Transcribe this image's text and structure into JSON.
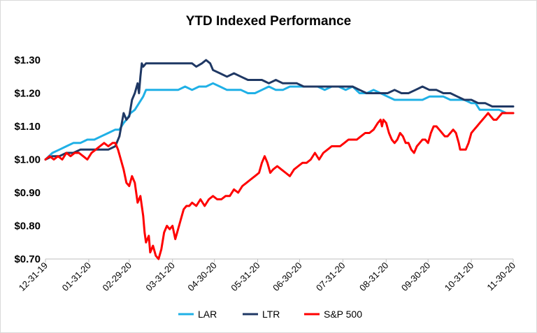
{
  "chart_data": {
    "type": "line",
    "title": "YTD Indexed Performance",
    "xlabel": "",
    "ylabel": "",
    "ylim": [
      0.7,
      1.3
    ],
    "y_ticks": [
      {
        "value": 0.7,
        "label": "$0.70"
      },
      {
        "value": 0.8,
        "label": "$0.80"
      },
      {
        "value": 0.9,
        "label": "$0.90"
      },
      {
        "value": 1.0,
        "label": "$1.00"
      },
      {
        "value": 1.1,
        "label": "$1.10"
      },
      {
        "value": 1.2,
        "label": "$1.20"
      },
      {
        "value": 1.3,
        "label": "$1.30"
      }
    ],
    "x_ticks": [
      {
        "day": 0,
        "label": "12-31-19"
      },
      {
        "day": 31,
        "label": "01-31-20"
      },
      {
        "day": 60,
        "label": "02-29-20"
      },
      {
        "day": 91,
        "label": "03-31-20"
      },
      {
        "day": 121,
        "label": "04-30-20"
      },
      {
        "day": 152,
        "label": "05-31-20"
      },
      {
        "day": 182,
        "label": "06-30-20"
      },
      {
        "day": 213,
        "label": "07-31-20"
      },
      {
        "day": 244,
        "label": "08-31-20"
      },
      {
        "day": 274,
        "label": "09-30-20"
      },
      {
        "day": 305,
        "label": "10-31-20"
      },
      {
        "day": 335,
        "label": "11-30-20"
      }
    ],
    "xlim": [
      0,
      335
    ],
    "grid": false,
    "legend_position": "bottom",
    "series": [
      {
        "name": "LAR",
        "color": "#1fb0e6",
        "points": [
          [
            0,
            1.0
          ],
          [
            5,
            1.02
          ],
          [
            10,
            1.03
          ],
          [
            15,
            1.04
          ],
          [
            20,
            1.05
          ],
          [
            25,
            1.05
          ],
          [
            30,
            1.06
          ],
          [
            35,
            1.06
          ],
          [
            40,
            1.07
          ],
          [
            45,
            1.08
          ],
          [
            50,
            1.09
          ],
          [
            53,
            1.09
          ],
          [
            56,
            1.11
          ],
          [
            58,
            1.12
          ],
          [
            61,
            1.14
          ],
          [
            64,
            1.15
          ],
          [
            67,
            1.17
          ],
          [
            70,
            1.19
          ],
          [
            72,
            1.21
          ],
          [
            75,
            1.21
          ],
          [
            80,
            1.21
          ],
          [
            88,
            1.21
          ],
          [
            95,
            1.21
          ],
          [
            100,
            1.22
          ],
          [
            105,
            1.21
          ],
          [
            110,
            1.22
          ],
          [
            115,
            1.22
          ],
          [
            120,
            1.23
          ],
          [
            125,
            1.22
          ],
          [
            130,
            1.21
          ],
          [
            135,
            1.21
          ],
          [
            140,
            1.21
          ],
          [
            145,
            1.2
          ],
          [
            150,
            1.2
          ],
          [
            155,
            1.21
          ],
          [
            160,
            1.22
          ],
          [
            165,
            1.21
          ],
          [
            170,
            1.21
          ],
          [
            175,
            1.22
          ],
          [
            180,
            1.22
          ],
          [
            185,
            1.22
          ],
          [
            190,
            1.22
          ],
          [
            195,
            1.22
          ],
          [
            200,
            1.21
          ],
          [
            205,
            1.22
          ],
          [
            210,
            1.22
          ],
          [
            215,
            1.21
          ],
          [
            220,
            1.22
          ],
          [
            225,
            1.2
          ],
          [
            230,
            1.2
          ],
          [
            235,
            1.21
          ],
          [
            240,
            1.2
          ],
          [
            245,
            1.19
          ],
          [
            250,
            1.18
          ],
          [
            255,
            1.18
          ],
          [
            260,
            1.18
          ],
          [
            265,
            1.18
          ],
          [
            270,
            1.18
          ],
          [
            275,
            1.19
          ],
          [
            280,
            1.19
          ],
          [
            285,
            1.19
          ],
          [
            290,
            1.18
          ],
          [
            295,
            1.18
          ],
          [
            300,
            1.18
          ],
          [
            305,
            1.17
          ],
          [
            308,
            1.17
          ],
          [
            311,
            1.15
          ],
          [
            315,
            1.15
          ],
          [
            320,
            1.15
          ],
          [
            325,
            1.15
          ],
          [
            330,
            1.14
          ],
          [
            335,
            1.14
          ]
        ]
      },
      {
        "name": "LTR",
        "color": "#1f3864",
        "points": [
          [
            0,
            1.0
          ],
          [
            5,
            1.01
          ],
          [
            10,
            1.01
          ],
          [
            15,
            1.02
          ],
          [
            20,
            1.02
          ],
          [
            25,
            1.03
          ],
          [
            30,
            1.03
          ],
          [
            35,
            1.03
          ],
          [
            40,
            1.03
          ],
          [
            45,
            1.03
          ],
          [
            50,
            1.04
          ],
          [
            53,
            1.07
          ],
          [
            56,
            1.14
          ],
          [
            58,
            1.12
          ],
          [
            60,
            1.13
          ],
          [
            62,
            1.18
          ],
          [
            64,
            1.2
          ],
          [
            66,
            1.23
          ],
          [
            67,
            1.2
          ],
          [
            68,
            1.25
          ],
          [
            69,
            1.29
          ],
          [
            70,
            1.28
          ],
          [
            72,
            1.29
          ],
          [
            75,
            1.29
          ],
          [
            85,
            1.29
          ],
          [
            95,
            1.29
          ],
          [
            100,
            1.29
          ],
          [
            105,
            1.29
          ],
          [
            108,
            1.28
          ],
          [
            112,
            1.29
          ],
          [
            115,
            1.3
          ],
          [
            118,
            1.29
          ],
          [
            120,
            1.27
          ],
          [
            125,
            1.26
          ],
          [
            130,
            1.25
          ],
          [
            135,
            1.26
          ],
          [
            140,
            1.25
          ],
          [
            145,
            1.24
          ],
          [
            150,
            1.24
          ],
          [
            155,
            1.24
          ],
          [
            160,
            1.23
          ],
          [
            165,
            1.24
          ],
          [
            170,
            1.23
          ],
          [
            175,
            1.23
          ],
          [
            180,
            1.23
          ],
          [
            185,
            1.22
          ],
          [
            190,
            1.22
          ],
          [
            195,
            1.22
          ],
          [
            200,
            1.22
          ],
          [
            205,
            1.22
          ],
          [
            210,
            1.22
          ],
          [
            215,
            1.22
          ],
          [
            220,
            1.22
          ],
          [
            225,
            1.21
          ],
          [
            230,
            1.2
          ],
          [
            235,
            1.2
          ],
          [
            240,
            1.2
          ],
          [
            245,
            1.2
          ],
          [
            250,
            1.21
          ],
          [
            255,
            1.2
          ],
          [
            260,
            1.2
          ],
          [
            265,
            1.21
          ],
          [
            270,
            1.22
          ],
          [
            275,
            1.21
          ],
          [
            280,
            1.21
          ],
          [
            285,
            1.2
          ],
          [
            290,
            1.2
          ],
          [
            295,
            1.19
          ],
          [
            300,
            1.18
          ],
          [
            305,
            1.18
          ],
          [
            310,
            1.17
          ],
          [
            315,
            1.17
          ],
          [
            320,
            1.16
          ],
          [
            325,
            1.16
          ],
          [
            330,
            1.16
          ],
          [
            335,
            1.16
          ]
        ]
      },
      {
        "name": "S&P 500",
        "color": "#ff0000",
        "points": [
          [
            0,
            1.0
          ],
          [
            3,
            1.01
          ],
          [
            6,
            1.0
          ],
          [
            9,
            1.01
          ],
          [
            12,
            1.0
          ],
          [
            15,
            1.02
          ],
          [
            18,
            1.01
          ],
          [
            21,
            1.02
          ],
          [
            24,
            1.02
          ],
          [
            27,
            1.01
          ],
          [
            30,
            1.0
          ],
          [
            33,
            1.02
          ],
          [
            36,
            1.03
          ],
          [
            39,
            1.04
          ],
          [
            42,
            1.05
          ],
          [
            45,
            1.04
          ],
          [
            48,
            1.05
          ],
          [
            50,
            1.05
          ],
          [
            52,
            1.03
          ],
          [
            54,
            1.0
          ],
          [
            56,
            0.97
          ],
          [
            58,
            0.93
          ],
          [
            60,
            0.92
          ],
          [
            62,
            0.95
          ],
          [
            64,
            0.93
          ],
          [
            66,
            0.87
          ],
          [
            68,
            0.89
          ],
          [
            70,
            0.83
          ],
          [
            71,
            0.78
          ],
          [
            72,
            0.75
          ],
          [
            74,
            0.77
          ],
          [
            75,
            0.72
          ],
          [
            77,
            0.74
          ],
          [
            79,
            0.71
          ],
          [
            81,
            0.7
          ],
          [
            83,
            0.73
          ],
          [
            85,
            0.78
          ],
          [
            87,
            0.8
          ],
          [
            89,
            0.79
          ],
          [
            91,
            0.8
          ],
          [
            93,
            0.76
          ],
          [
            95,
            0.79
          ],
          [
            97,
            0.82
          ],
          [
            99,
            0.85
          ],
          [
            101,
            0.86
          ],
          [
            103,
            0.86
          ],
          [
            105,
            0.87
          ],
          [
            108,
            0.86
          ],
          [
            111,
            0.88
          ],
          [
            114,
            0.86
          ],
          [
            117,
            0.88
          ],
          [
            120,
            0.89
          ],
          [
            123,
            0.88
          ],
          [
            126,
            0.88
          ],
          [
            129,
            0.89
          ],
          [
            132,
            0.89
          ],
          [
            135,
            0.91
          ],
          [
            138,
            0.9
          ],
          [
            141,
            0.92
          ],
          [
            144,
            0.93
          ],
          [
            147,
            0.94
          ],
          [
            150,
            0.95
          ],
          [
            153,
            0.96
          ],
          [
            155,
            0.99
          ],
          [
            157,
            1.01
          ],
          [
            159,
            0.99
          ],
          [
            161,
            0.96
          ],
          [
            163,
            0.97
          ],
          [
            166,
            0.98
          ],
          [
            169,
            0.97
          ],
          [
            172,
            0.96
          ],
          [
            175,
            0.95
          ],
          [
            178,
            0.97
          ],
          [
            181,
            0.98
          ],
          [
            184,
            0.99
          ],
          [
            187,
            0.99
          ],
          [
            190,
            1.0
          ],
          [
            193,
            1.02
          ],
          [
            196,
            1.0
          ],
          [
            199,
            1.02
          ],
          [
            202,
            1.03
          ],
          [
            205,
            1.04
          ],
          [
            208,
            1.04
          ],
          [
            211,
            1.04
          ],
          [
            214,
            1.05
          ],
          [
            217,
            1.06
          ],
          [
            220,
            1.06
          ],
          [
            223,
            1.06
          ],
          [
            226,
            1.07
          ],
          [
            229,
            1.08
          ],
          [
            232,
            1.08
          ],
          [
            235,
            1.09
          ],
          [
            238,
            1.11
          ],
          [
            240,
            1.12
          ],
          [
            241,
            1.1
          ],
          [
            242,
            1.12
          ],
          [
            244,
            1.11
          ],
          [
            246,
            1.08
          ],
          [
            248,
            1.06
          ],
          [
            250,
            1.05
          ],
          [
            252,
            1.06
          ],
          [
            254,
            1.08
          ],
          [
            256,
            1.07
          ],
          [
            258,
            1.05
          ],
          [
            260,
            1.05
          ],
          [
            262,
            1.03
          ],
          [
            264,
            1.02
          ],
          [
            266,
            1.04
          ],
          [
            268,
            1.05
          ],
          [
            270,
            1.06
          ],
          [
            272,
            1.06
          ],
          [
            274,
            1.05
          ],
          [
            276,
            1.08
          ],
          [
            278,
            1.1
          ],
          [
            280,
            1.1
          ],
          [
            282,
            1.09
          ],
          [
            284,
            1.08
          ],
          [
            286,
            1.07
          ],
          [
            288,
            1.07
          ],
          [
            290,
            1.08
          ],
          [
            292,
            1.09
          ],
          [
            294,
            1.08
          ],
          [
            296,
            1.05
          ],
          [
            297,
            1.03
          ],
          [
            299,
            1.03
          ],
          [
            301,
            1.03
          ],
          [
            303,
            1.05
          ],
          [
            305,
            1.08
          ],
          [
            307,
            1.09
          ],
          [
            309,
            1.1
          ],
          [
            311,
            1.11
          ],
          [
            313,
            1.12
          ],
          [
            315,
            1.13
          ],
          [
            317,
            1.14
          ],
          [
            319,
            1.13
          ],
          [
            321,
            1.12
          ],
          [
            323,
            1.12
          ],
          [
            325,
            1.13
          ],
          [
            327,
            1.14
          ],
          [
            329,
            1.14
          ],
          [
            331,
            1.14
          ],
          [
            333,
            1.14
          ],
          [
            335,
            1.14
          ]
        ]
      }
    ]
  }
}
